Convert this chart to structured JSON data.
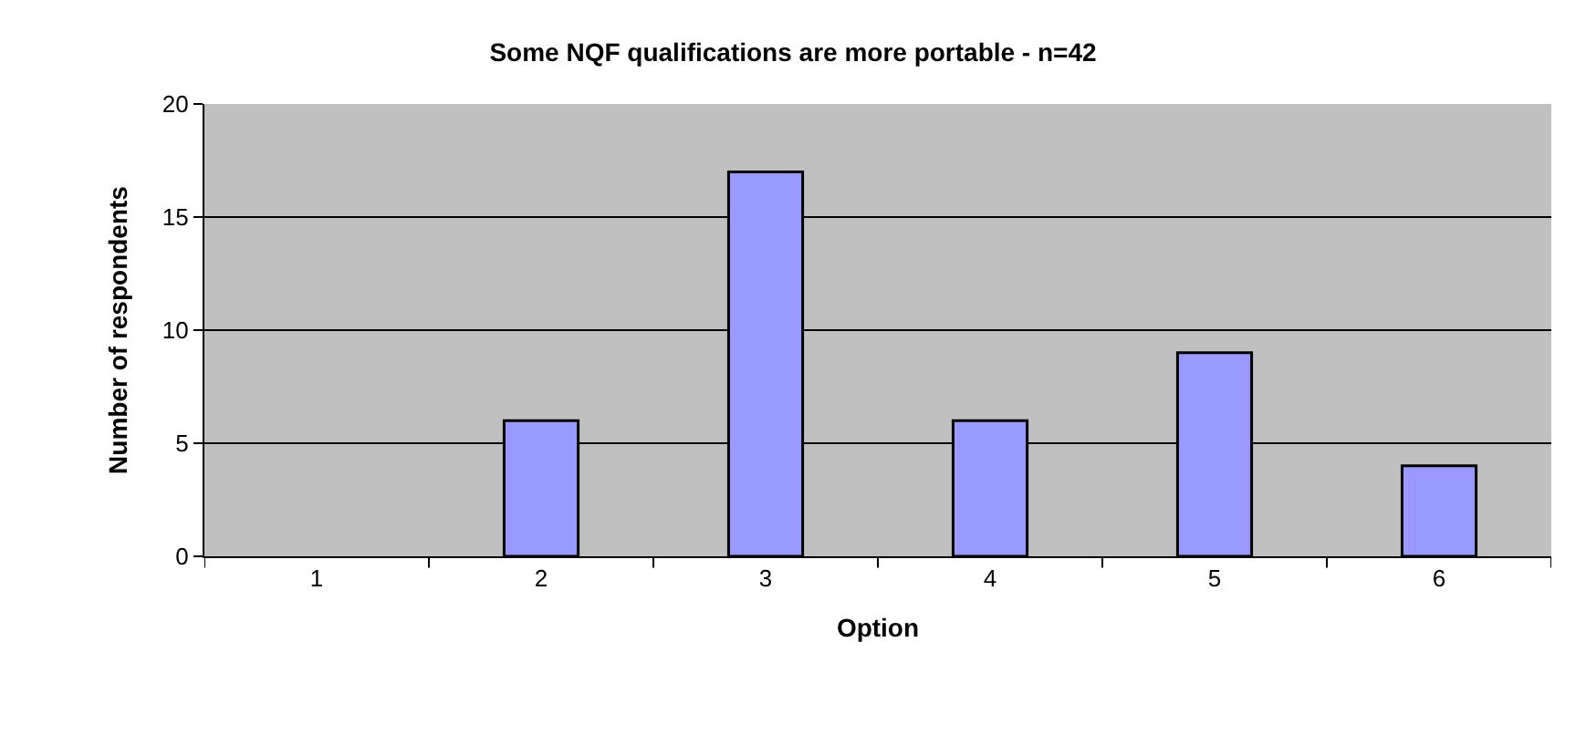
{
  "chart_data": {
    "type": "bar",
    "title": "Some NQF qualifications are more portable - n=42",
    "xlabel": "Option",
    "ylabel": "Number of respondents",
    "categories": [
      "1",
      "2",
      "3",
      "4",
      "5",
      "6"
    ],
    "values": [
      0,
      6,
      17,
      6,
      9,
      4
    ],
    "color": "#9999ff",
    "ylim": [
      0,
      20
    ],
    "yticks": [
      0,
      5,
      10,
      15,
      20
    ],
    "grid": "y"
  }
}
